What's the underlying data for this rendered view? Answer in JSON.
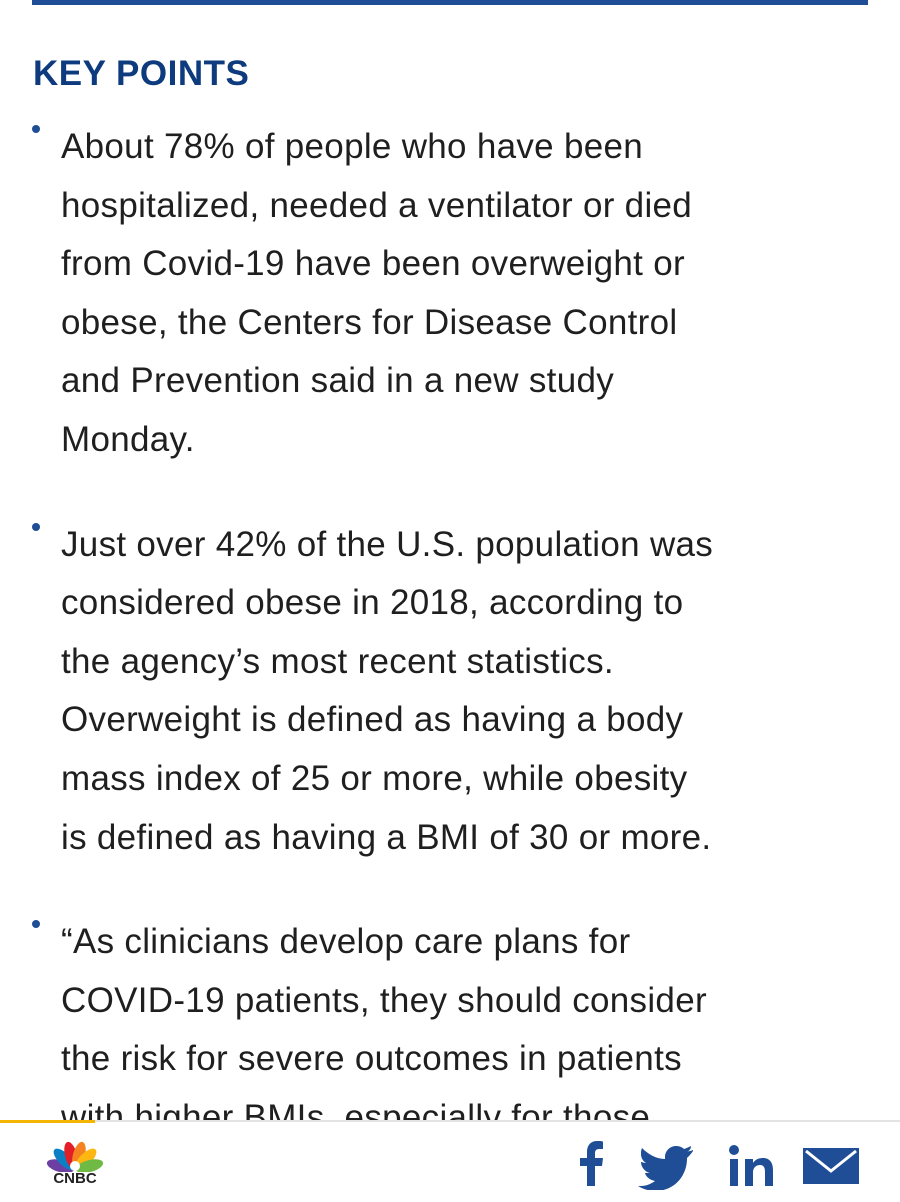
{
  "section": {
    "title": "KEY POINTS",
    "bullets": [
      {
        "lines": [
          "About 78% of people who have been",
          "hospitalized, needed a ventilator or died",
          "from Covid-19 have been overweight or",
          "obese, the Centers for Disease Control",
          "and Prevention said in a new study",
          "Monday."
        ]
      },
      {
        "lines": [
          "Just over 42% of the U.S. population was",
          "considered obese in 2018, according to",
          "the agency’s most recent statistics.",
          "Overweight is defined as having a body",
          "mass index of 25 or more, while obesity",
          "is defined as having a BMI of 30 or more."
        ]
      },
      {
        "lines": [
          "“As clinicians develop care plans for",
          "COVID-19 patients, they should consider",
          "the risk for severe outcomes in patients",
          "with higher BMIs, especially for those"
        ]
      }
    ]
  },
  "footer": {
    "logo": "CNBC"
  }
}
